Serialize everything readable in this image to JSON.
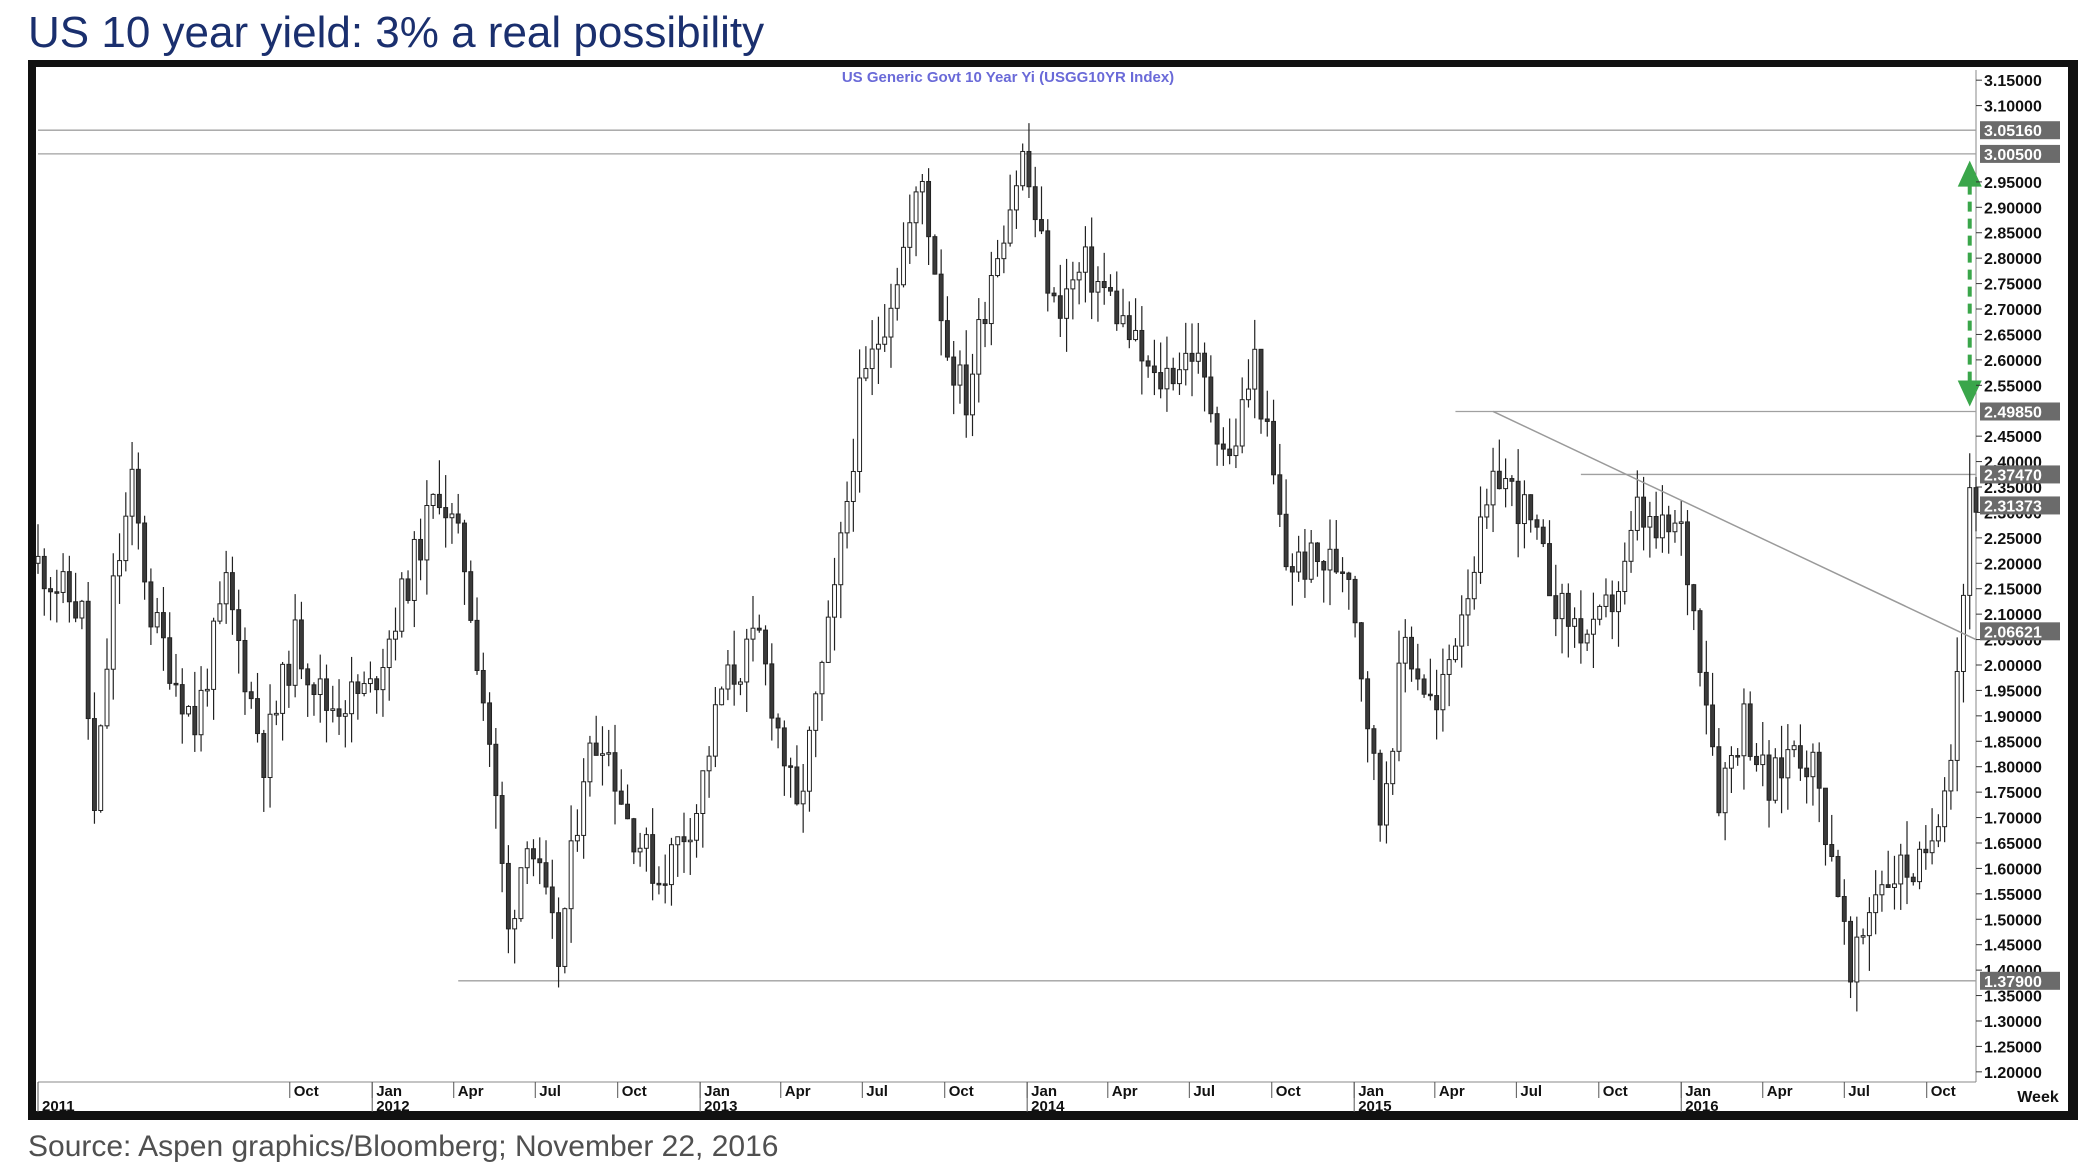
{
  "page": {
    "title": "US 10 year yield: 3% a real possibility",
    "source": "Source: Aspen graphics/Bloomberg; November 22, 2016"
  },
  "colors": {
    "title": "#1a2f6e",
    "chart_title": "#6a6ad8",
    "candle_up": "#ffffff",
    "candle_down": "#3a3a3a",
    "arrow": "#3aa64a",
    "frame": "#111111",
    "level_line": "#a0a0a0"
  },
  "chart_data": {
    "type": "candlestick",
    "title": "US  Generic  Govt  10  Year  Yi  (USGG10YR Index)",
    "frequency_label": "Week",
    "x_range": [
      "2010-12-24",
      "2016-11-25"
    ],
    "ylim": [
      1.18,
      3.17
    ],
    "y_ticks": [
      {
        "v": 3.15,
        "label": "3.15000"
      },
      {
        "v": 3.1,
        "label": "3.10000"
      },
      {
        "v": 2.95,
        "label": "2.95000"
      },
      {
        "v": 2.9,
        "label": "2.90000"
      },
      {
        "v": 2.85,
        "label": "2.85000"
      },
      {
        "v": 2.8,
        "label": "2.80000"
      },
      {
        "v": 2.75,
        "label": "2.75000"
      },
      {
        "v": 2.7,
        "label": "2.70000"
      },
      {
        "v": 2.65,
        "label": "2.65000"
      },
      {
        "v": 2.6,
        "label": "2.60000"
      },
      {
        "v": 2.55,
        "label": "2.55000"
      },
      {
        "v": 2.45,
        "label": "2.45000"
      },
      {
        "v": 2.4,
        "label": "2.40000"
      },
      {
        "v": 2.35,
        "label": "2.35000"
      },
      {
        "v": 2.3,
        "label": "2.30000"
      },
      {
        "v": 2.25,
        "label": "2.25000"
      },
      {
        "v": 2.2,
        "label": "2.20000"
      },
      {
        "v": 2.15,
        "label": "2.15000"
      },
      {
        "v": 2.1,
        "label": "2.10000"
      },
      {
        "v": 2.05,
        "label": "2.05000"
      },
      {
        "v": 2.0,
        "label": "2.00000"
      },
      {
        "v": 1.95,
        "label": "1.95000"
      },
      {
        "v": 1.9,
        "label": "1.90000"
      },
      {
        "v": 1.85,
        "label": "1.85000"
      },
      {
        "v": 1.8,
        "label": "1.80000"
      },
      {
        "v": 1.75,
        "label": "1.75000"
      },
      {
        "v": 1.7,
        "label": "1.70000"
      },
      {
        "v": 1.65,
        "label": "1.65000"
      },
      {
        "v": 1.6,
        "label": "1.60000"
      },
      {
        "v": 1.55,
        "label": "1.55000"
      },
      {
        "v": 1.5,
        "label": "1.50000"
      },
      {
        "v": 1.45,
        "label": "1.45000"
      },
      {
        "v": 1.4,
        "label": "1.40000"
      },
      {
        "v": 1.35,
        "label": "1.35000"
      },
      {
        "v": 1.3,
        "label": "1.30000"
      },
      {
        "v": 1.25,
        "label": "1.25000"
      },
      {
        "v": 1.2,
        "label": "1.20000"
      }
    ],
    "highlighted_levels": [
      {
        "v": 3.0516,
        "label": "3.05160",
        "line_from": "2010-12-24"
      },
      {
        "v": 3.005,
        "label": "3.00500",
        "line_from": "2010-12-24"
      },
      {
        "v": 2.4985,
        "label": "2.49850",
        "line_from": "2015-04-24"
      },
      {
        "v": 2.3747,
        "label": "2.37470",
        "line_from": "2015-09-11"
      },
      {
        "v": 2.31373,
        "label": "2.31373"
      },
      {
        "v": 2.06621,
        "label": "2.06621"
      },
      {
        "v": 1.379,
        "label": "1.37900",
        "line_from": "2012-04-06"
      }
    ],
    "trendline": {
      "x1": "2015-06-05",
      "y1": 2.4985,
      "x2": "2016-11-25",
      "y2": 2.05
    },
    "arrow": {
      "x": "2016-11-18",
      "y_top": 2.98,
      "y_bottom": 2.52
    },
    "month_ticks": [
      {
        "d": "2011-10-01",
        "label": "Oct"
      },
      {
        "d": "2012-01-01",
        "label": "Jan"
      },
      {
        "d": "2012-04-01",
        "label": "Apr"
      },
      {
        "d": "2012-07-01",
        "label": "Jul"
      },
      {
        "d": "2012-10-01",
        "label": "Oct"
      },
      {
        "d": "2013-01-01",
        "label": "Jan"
      },
      {
        "d": "2013-04-01",
        "label": "Apr"
      },
      {
        "d": "2013-07-01",
        "label": "Jul"
      },
      {
        "d": "2013-10-01",
        "label": "Oct"
      },
      {
        "d": "2014-01-01",
        "label": "Jan"
      },
      {
        "d": "2014-04-01",
        "label": "Apr"
      },
      {
        "d": "2014-07-01",
        "label": "Jul"
      },
      {
        "d": "2014-10-01",
        "label": "Oct"
      },
      {
        "d": "2015-01-01",
        "label": "Jan"
      },
      {
        "d": "2015-04-01",
        "label": "Apr"
      },
      {
        "d": "2015-07-01",
        "label": "Jul"
      },
      {
        "d": "2015-10-01",
        "label": "Oct"
      },
      {
        "d": "2016-01-01",
        "label": "Jan"
      },
      {
        "d": "2016-04-01",
        "label": "Apr"
      },
      {
        "d": "2016-07-01",
        "label": "Jul"
      },
      {
        "d": "2016-10-01",
        "label": "Oct"
      }
    ],
    "year_ticks": [
      {
        "d": "2010-12-24",
        "label": "2011"
      },
      {
        "d": "2012-01-01",
        "label": "2012"
      },
      {
        "d": "2013-01-01",
        "label": "2013"
      },
      {
        "d": "2014-01-01",
        "label": "2014"
      },
      {
        "d": "2015-01-01",
        "label": "2015"
      },
      {
        "d": "2016-01-01",
        "label": "2016"
      }
    ],
    "anchor_closes": [
      [
        "2010-12-24",
        2.2
      ],
      [
        "2011-02-11",
        2.1
      ],
      [
        "2011-02-25",
        1.7
      ],
      [
        "2011-03-18",
        2.15
      ],
      [
        "2011-04-08",
        2.35
      ],
      [
        "2011-04-29",
        2.1
      ],
      [
        "2011-06-17",
        1.88
      ],
      [
        "2011-07-22",
        2.15
      ],
      [
        "2011-09-02",
        1.82
      ],
      [
        "2011-10-07",
        2.05
      ],
      [
        "2011-11-11",
        1.92
      ],
      [
        "2011-12-30",
        1.95
      ],
      [
        "2012-03-16",
        2.35
      ],
      [
        "2012-04-13",
        2.2
      ],
      [
        "2012-05-11",
        1.85
      ],
      [
        "2012-06-01",
        1.47
      ],
      [
        "2012-06-22",
        1.68
      ],
      [
        "2012-07-27",
        1.42
      ],
      [
        "2012-08-24",
        1.8
      ],
      [
        "2012-09-14",
        1.87
      ],
      [
        "2012-10-12",
        1.7
      ],
      [
        "2012-11-16",
        1.58
      ],
      [
        "2012-12-28",
        1.72
      ],
      [
        "2013-01-25",
        1.95
      ],
      [
        "2013-03-08",
        2.05
      ],
      [
        "2013-04-19",
        1.7
      ],
      [
        "2013-05-31",
        2.13
      ],
      [
        "2013-06-28",
        2.52
      ],
      [
        "2013-07-12",
        2.6
      ],
      [
        "2013-09-06",
        2.95
      ],
      [
        "2013-10-04",
        2.62
      ],
      [
        "2013-10-25",
        2.52
      ],
      [
        "2013-11-22",
        2.78
      ],
      [
        "2013-12-27",
        3.0
      ],
      [
        "2014-01-31",
        2.7
      ],
      [
        "2014-03-07",
        2.78
      ],
      [
        "2014-04-04",
        2.72
      ],
      [
        "2014-05-23",
        2.55
      ],
      [
        "2014-07-04",
        2.62
      ],
      [
        "2014-08-15",
        2.4
      ],
      [
        "2014-09-12",
        2.6
      ],
      [
        "2014-10-17",
        2.2
      ],
      [
        "2014-11-28",
        2.2
      ],
      [
        "2014-12-26",
        2.2
      ],
      [
        "2015-01-30",
        1.7
      ],
      [
        "2015-02-27",
        2.05
      ],
      [
        "2015-04-03",
        1.9
      ],
      [
        "2015-05-01",
        2.12
      ],
      [
        "2015-06-12",
        2.38
      ],
      [
        "2015-07-10",
        2.3
      ],
      [
        "2015-08-21",
        2.1
      ],
      [
        "2015-09-25",
        2.05
      ],
      [
        "2015-10-30",
        2.18
      ],
      [
        "2015-11-13",
        2.3
      ],
      [
        "2015-12-04",
        2.25
      ],
      [
        "2015-12-31",
        2.27
      ],
      [
        "2016-01-29",
        1.95
      ],
      [
        "2016-02-12",
        1.75
      ],
      [
        "2016-03-11",
        1.9
      ],
      [
        "2016-04-08",
        1.75
      ],
      [
        "2016-05-06",
        1.85
      ],
      [
        "2016-05-27",
        1.8
      ],
      [
        "2016-06-24",
        1.57
      ],
      [
        "2016-07-08",
        1.37
      ],
      [
        "2016-08-05",
        1.57
      ],
      [
        "2016-09-02",
        1.6
      ],
      [
        "2016-09-30",
        1.6
      ],
      [
        "2016-10-28",
        1.85
      ],
      [
        "2016-11-11",
        2.15
      ],
      [
        "2016-11-18",
        2.35
      ],
      [
        "2016-11-25",
        2.33
      ]
    ]
  }
}
